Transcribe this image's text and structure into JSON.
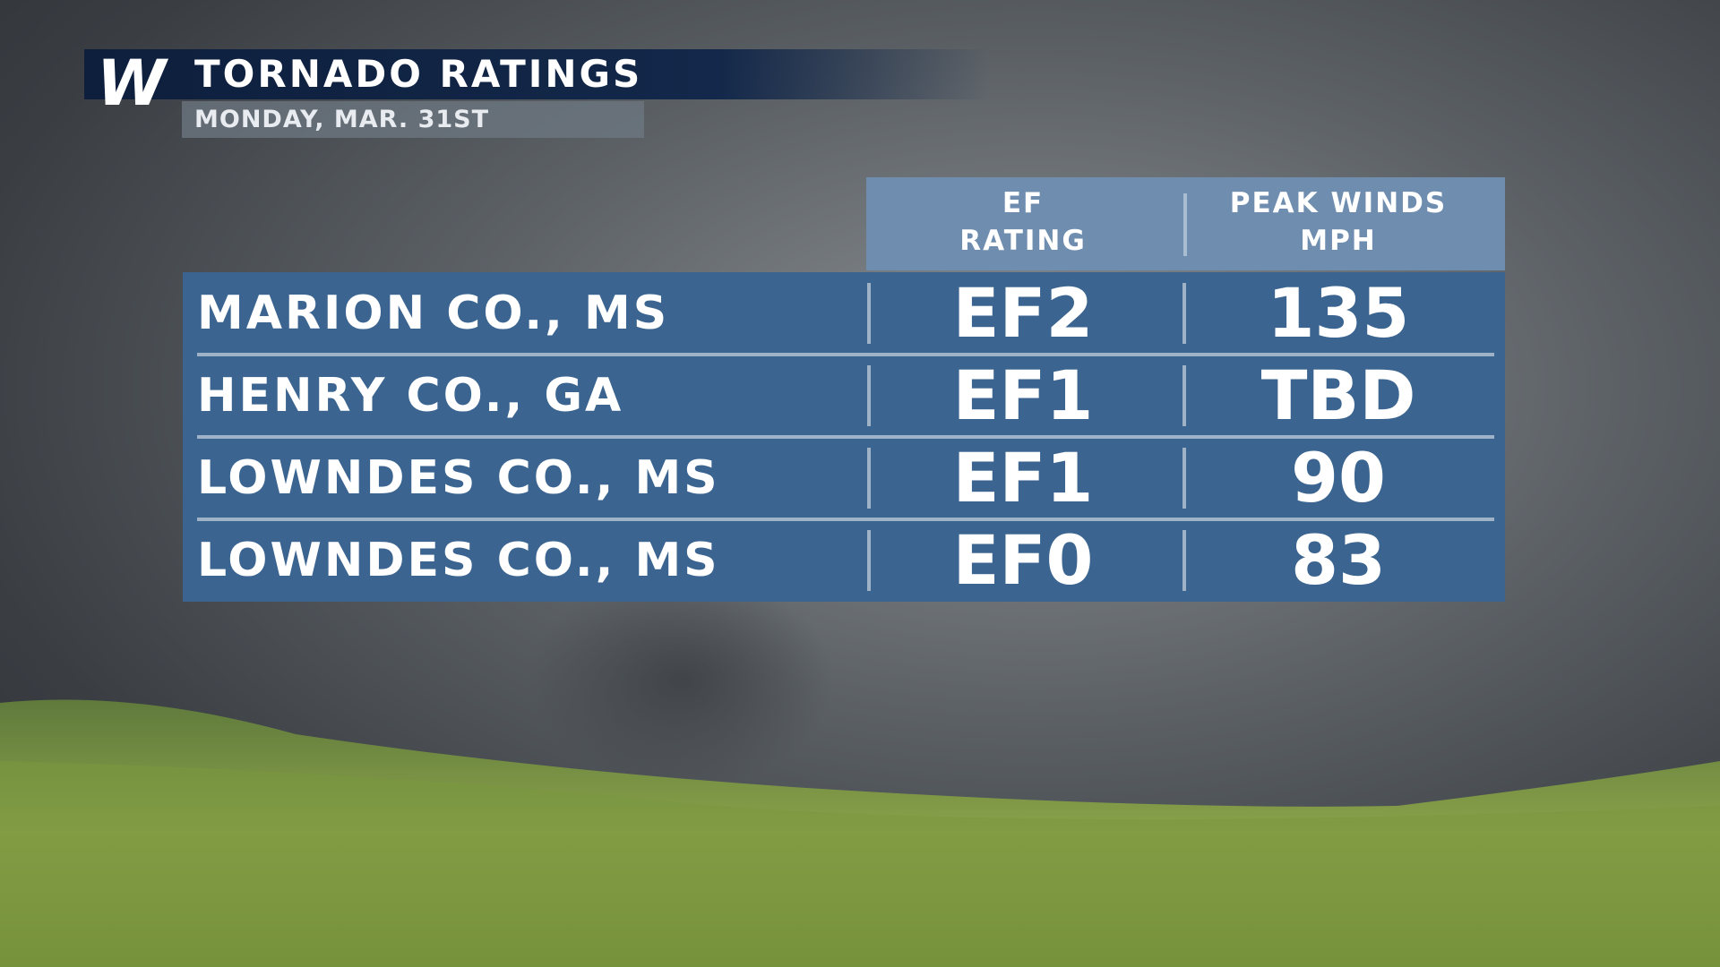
{
  "header": {
    "logo": "W",
    "title": "TORNADO RATINGS",
    "subtitle": "MONDAY, MAR. 31ST"
  },
  "table": {
    "columns": [
      [
        "EF",
        "RATING"
      ],
      [
        "PEAK WINDS",
        "MPH"
      ]
    ],
    "rows": [
      [
        "MARION CO., MS",
        "EF2",
        "135"
      ],
      [
        "HENRY CO., GA",
        "EF1",
        "TBD"
      ],
      [
        "LOWNDES CO., MS",
        "EF1",
        "90"
      ],
      [
        "LOWNDES CO., MS",
        "EF0",
        "83"
      ]
    ]
  }
}
